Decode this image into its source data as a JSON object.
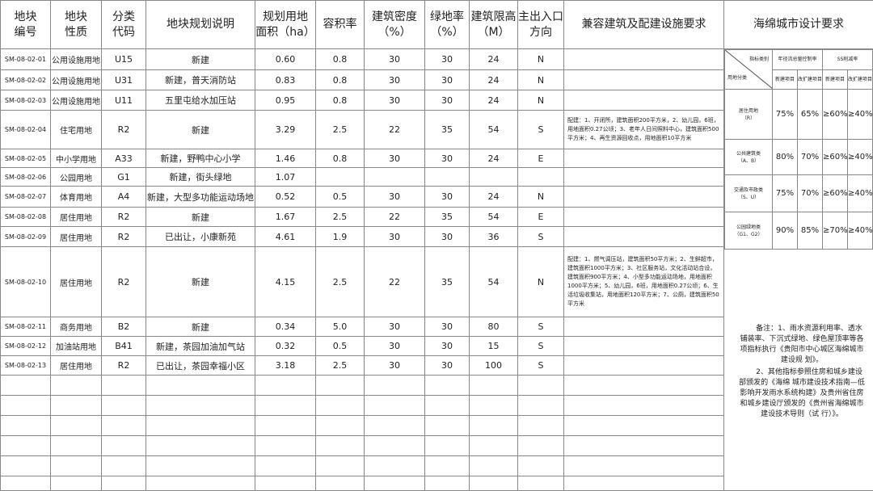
{
  "headers": [
    "地块\n编号",
    "地块\n性质",
    "分类\n代码",
    "地块规划说明",
    "规划用地\n面积（ha）",
    "容积率",
    "建筑密度\n（%）",
    "绿地率\n（%）",
    "建筑限高\n（M）",
    "主出入口\n方向",
    "兼容建筑及配建设施要求",
    "海绵城市设计要求"
  ],
  "rows": [
    [
      "SM-08-02-01",
      "公用设施用地",
      "U15",
      "新建",
      "0.60",
      "0.8",
      "30",
      "30",
      "24",
      "N"
    ],
    [
      "SM-08-02-02",
      "公用设施用地",
      "U31",
      "新建，普天消防站",
      "0.83",
      "0.8",
      "30",
      "30",
      "24",
      "N"
    ],
    [
      "SM-08-02-03",
      "公用设施用地",
      "U11",
      "五里屯给水加压站",
      "0.95",
      "0.8",
      "30",
      "30",
      "24",
      "N"
    ],
    [
      "SM-08-02-04",
      "住宅用地",
      "R2",
      "新建",
      "3.29",
      "2.5",
      "22",
      "35",
      "54",
      "S"
    ],
    [
      "SM-08-02-05",
      "中小学用地",
      "A33",
      "新建，野鸭中心小学",
      "1.46",
      "0.8",
      "30",
      "30",
      "24",
      "E"
    ],
    [
      "SM-08-02-06",
      "公园用地",
      "G1",
      "新建，街头绿地",
      "1.07",
      "",
      "",
      "",
      "",
      ""
    ],
    [
      "SM-08-02-07",
      "体育用地",
      "A4",
      "新建，大型多功能运动场地",
      "0.52",
      "0.5",
      "30",
      "30",
      "24",
      "N"
    ],
    [
      "SM-08-02-08",
      "居住用地",
      "R2",
      "新建",
      "1.67",
      "2.5",
      "22",
      "35",
      "54",
      "E"
    ],
    [
      "SM-08-02-09",
      "居住用地",
      "R2",
      "已出让，小康新苑",
      "4.61",
      "1.9",
      "30",
      "30",
      "36",
      "S"
    ],
    [
      "SM-08-02-10",
      "居住用地",
      "R2",
      "新建",
      "4.15",
      "2.5",
      "22",
      "35",
      "54",
      "N"
    ],
    [
      "SM-08-02-11",
      "商务用地",
      "B2",
      "新建",
      "0.34",
      "5.0",
      "30",
      "30",
      "80",
      "S"
    ],
    [
      "SM-08-02-12",
      "加油站用地",
      "B41",
      "新建，茶园加油加气站",
      "0.32",
      "0.5",
      "30",
      "30",
      "15",
      "S"
    ],
    [
      "SM-08-02-13",
      "居住用地",
      "R2",
      "已出让，茶园幸福小区",
      "3.18",
      "2.5",
      "30",
      "30",
      "100",
      "S"
    ]
  ],
  "requirements": {
    "3": "配建：1、开闭所，建筑面积200平方米，2、幼儿园，6班，用地面积0.27公顷；3、老年人日间照料中心，建筑面积500平方米；4、再生资源回收点，用地面积10平方米",
    "9": "配建：1、燃气调压站，建筑面积50平方米；2、生鲜超市，建筑面积1000平方米；3、社区服务站，文化活动站合设，建筑面积900平方米；4、小型多功能运动场地，用地面积1000平方米；5、幼儿园，6班，用地面积0.27公顷；6、生活垃圾收集站，用地面积120平方米；7、公厕，建筑面积50平方米"
  },
  "sponge": {
    "corner_top": "指标类别",
    "corner_bottom": "用地分类",
    "col_groups": [
      "年径流总量控制率",
      "SS削减率"
    ],
    "sub_cols": [
      "新建项目",
      "改扩建项目",
      "新建项目",
      "改扩建项目"
    ],
    "rows": [
      {
        "name": "居住用地",
        "code": "（R）",
        "values": [
          "75%",
          "65%",
          "≥60%",
          "≥40%"
        ]
      },
      {
        "name": "公共建筑类",
        "code": "（A、B）",
        "values": [
          "80%",
          "70%",
          "≥60%",
          "≥40%"
        ]
      },
      {
        "name": "交通及市政类",
        "code": "（S、U）",
        "values": [
          "75%",
          "70%",
          "≥60%",
          "≥40%"
        ]
      },
      {
        "name": "公园绿地类",
        "code": "（G1、G2）",
        "values": [
          "90%",
          "85%",
          "≥70%",
          "≥40%"
        ]
      }
    ],
    "note1": "备注：1、雨水资源利用率、透水铺装率、下沉式绿地、绿色屋顶率等各项指标执行《贵阳市中心城区海绵城市建设规 划》。",
    "note2": "2、其他指标参照住房和城乡建设部颁发的《海绵 城市建设技术指南—低影响开发雨水系统构建》及贵州省住房 和城乡建设厅颁发的《贵州省海绵城市建设技术导则（试 行）》。"
  }
}
